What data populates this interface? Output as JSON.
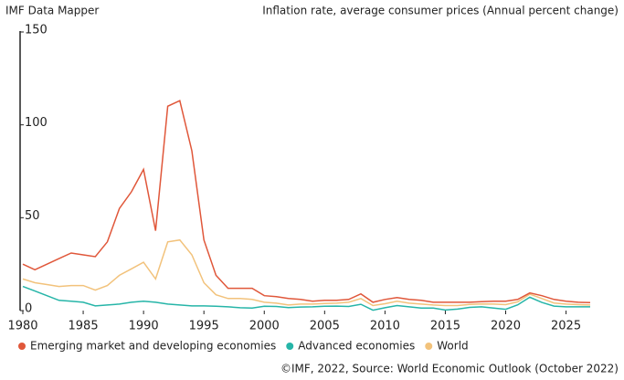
{
  "source": "IMF Data Mapper",
  "footer": "©IMF, 2022, Source: World Economic Outlook (October 2022)",
  "chart_data": {
    "type": "line",
    "title": "Inflation  rate, average consumer prices (Annual percent change)",
    "x": [
      1980,
      1981,
      1982,
      1983,
      1984,
      1985,
      1986,
      1987,
      1988,
      1989,
      1990,
      1991,
      1992,
      1993,
      1994,
      1995,
      1996,
      1997,
      1998,
      1999,
      2000,
      2001,
      2002,
      2003,
      2004,
      2005,
      2006,
      2007,
      2008,
      2009,
      2010,
      2011,
      2012,
      2013,
      2014,
      2015,
      2016,
      2017,
      2018,
      2019,
      2020,
      2021,
      2022,
      2023,
      2024,
      2025,
      2026,
      2027
    ],
    "series": [
      {
        "name": "Emerging market and developing economies",
        "color": "#e0573a",
        "values": [
          25,
          22,
          25,
          28,
          31,
          30,
          29,
          37,
          55,
          64,
          76,
          43,
          110,
          113,
          86,
          38,
          19,
          12,
          12,
          12,
          8,
          7.5,
          6.5,
          6,
          5,
          5.5,
          5.5,
          6,
          9,
          4.5,
          6,
          7,
          6,
          5.5,
          4.5,
          4.5,
          4.5,
          4.5,
          4.8,
          5,
          5,
          6,
          9.5,
          8,
          6,
          5,
          4.5,
          4.3
        ]
      },
      {
        "name": "Advanced economies",
        "color": "#26b5a8",
        "values": [
          13,
          10.5,
          8,
          5.5,
          5,
          4.5,
          2.5,
          3,
          3.5,
          4.5,
          5,
          4.5,
          3.5,
          3,
          2.5,
          2.5,
          2.3,
          2,
          1.5,
          1.4,
          2.3,
          2.2,
          1.6,
          1.9,
          2,
          2.3,
          2.4,
          2.2,
          3.4,
          0.2,
          1.5,
          2.7,
          2,
          1.4,
          1.4,
          0.3,
          0.8,
          1.7,
          2,
          1.4,
          0.7,
          3.1,
          7.2,
          4.4,
          2.4,
          2,
          2,
          2
        ]
      },
      {
        "name": "World",
        "color": "#f2c27b",
        "values": [
          17,
          15,
          14,
          13,
          13.5,
          13.5,
          11,
          13.5,
          19,
          22.5,
          26,
          17,
          37,
          38,
          30,
          15,
          8.5,
          6.5,
          6.5,
          6,
          4.5,
          4,
          3,
          3.5,
          3.5,
          3.8,
          4,
          4.5,
          6.5,
          2.7,
          3.7,
          5,
          4,
          3.5,
          3,
          2.7,
          2.7,
          3.3,
          3.6,
          3.5,
          3.2,
          4.7,
          8.8,
          6.5,
          4.1,
          3.5,
          3.2,
          3
        ]
      }
    ],
    "xlim": [
      1980,
      2027
    ],
    "xticks": [
      1980,
      1985,
      1990,
      1995,
      2000,
      2005,
      2010,
      2015,
      2020,
      2025
    ],
    "ylim": [
      0,
      150
    ],
    "yticks": [
      0,
      50,
      100,
      150
    ]
  }
}
